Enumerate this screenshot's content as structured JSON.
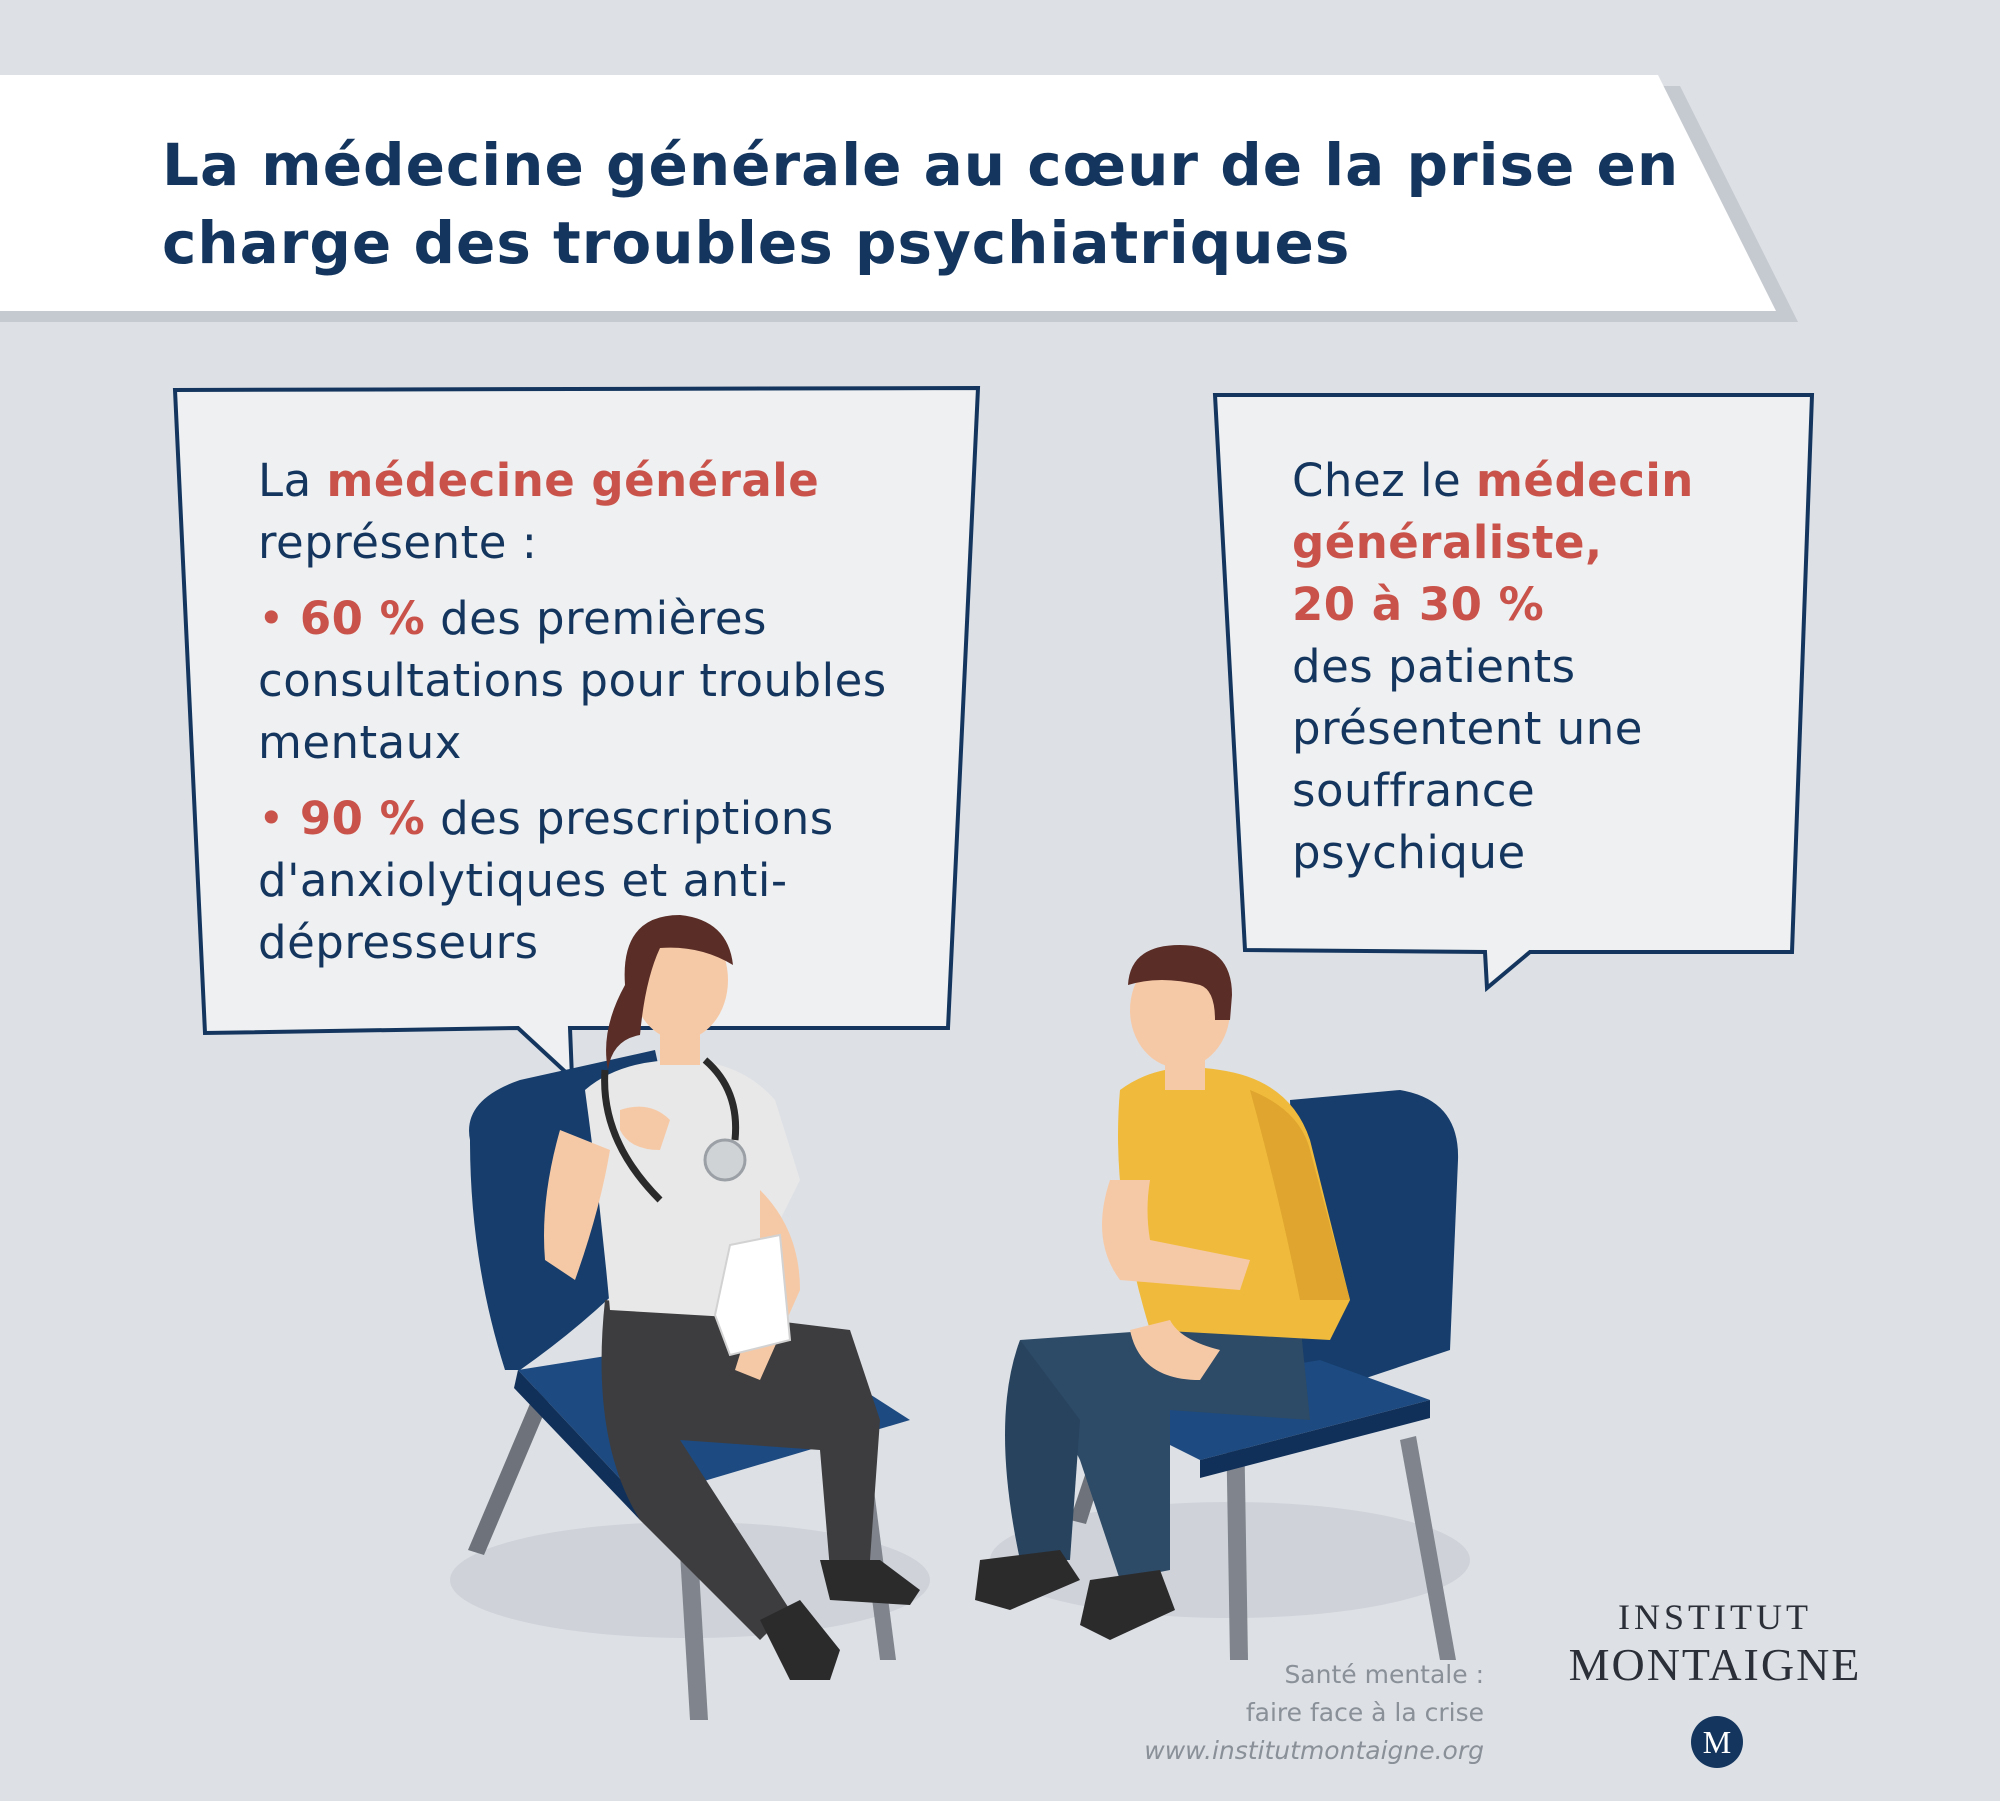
{
  "title": "La médecine générale au cœur de la prise en charge des troubles psychiatriques",
  "left_bubble": {
    "intro_prefix": "La ",
    "intro_highlight": "médecine générale",
    "intro_suffix": "représente :",
    "bullets": [
      {
        "value": "60 %",
        "text": "des premières consultations pour troubles mentaux"
      },
      {
        "value": "90 %",
        "text": "des prescriptions d'anxiolytiques et anti-dépresseurs"
      }
    ]
  },
  "right_bubble": {
    "prefix": "Chez le ",
    "highlight": "médecin généraliste,",
    "value": "20 à 30 %",
    "text": "des patients présentent une souffrance psychique"
  },
  "credit": {
    "line1": "Santé mentale :",
    "line2": "faire face à la crise",
    "url": "www.institutmontaigne.org"
  },
  "logo": {
    "line1": "INSTITUT",
    "line2": "MONTAIGNE",
    "monogram": "M"
  },
  "colors": {
    "navy": "#14365e",
    "accent_red": "#c9534a",
    "background": "#dde0e5",
    "chair_blue": "#163d6b",
    "shirt_yellow": "#f0bb3c"
  }
}
